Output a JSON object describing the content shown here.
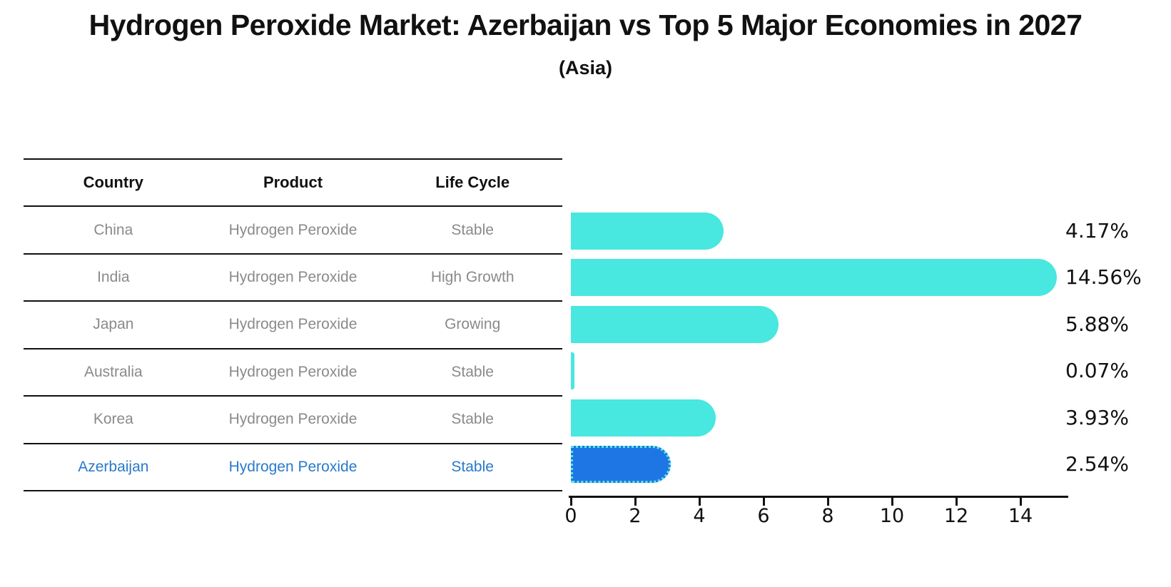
{
  "title": "Hydrogen Peroxide Market: Azerbaijan vs Top 5 Major Economies in 2027",
  "subtitle": "(Asia)",
  "table": {
    "headers": [
      "Country",
      "Product",
      "Life Cycle"
    ],
    "rows": [
      {
        "country": "China",
        "product": "Hydrogen Peroxide",
        "life_cycle": "Stable",
        "highlight": false
      },
      {
        "country": "India",
        "product": "Hydrogen Peroxide",
        "life_cycle": "High Growth",
        "highlight": false
      },
      {
        "country": "Japan",
        "product": "Hydrogen Peroxide",
        "life_cycle": "Growing",
        "highlight": false
      },
      {
        "country": "Australia",
        "product": "Hydrogen Peroxide",
        "life_cycle": "Stable",
        "highlight": false
      },
      {
        "country": "Korea",
        "product": "Hydrogen Peroxide",
        "life_cycle": "Stable",
        "highlight": false
      },
      {
        "country": "Azerbaijan",
        "product": "Hydrogen Peroxide",
        "life_cycle": "Stable",
        "highlight": true
      }
    ]
  },
  "chart_data": {
    "type": "bar",
    "orientation": "horizontal",
    "title": "Hydrogen Peroxide Market: Azerbaijan vs Top 5 Major Economies in 2027",
    "subtitle": "(Asia)",
    "categories": [
      "China",
      "India",
      "Japan",
      "Australia",
      "Korea",
      "Azerbaijan"
    ],
    "values": [
      4.17,
      14.56,
      5.88,
      0.07,
      3.93,
      2.54
    ],
    "value_labels": [
      "4.17%",
      "14.56%",
      "5.88%",
      "0.07%",
      "3.93%",
      "2.54%"
    ],
    "x_ticks": [
      0,
      2,
      4,
      6,
      8,
      10,
      12,
      14
    ],
    "xlim": [
      0,
      15.5
    ],
    "grid": false,
    "legend": "none",
    "highlight_category": "Azerbaijan",
    "colors": {
      "bar": "#48E7E0",
      "highlight_bar": "#1E76E4",
      "highlight_border": "#5BE6E0",
      "highlight_text": "#2979CB",
      "row_text": "#8A8A8A",
      "header_text": "#111111"
    }
  }
}
